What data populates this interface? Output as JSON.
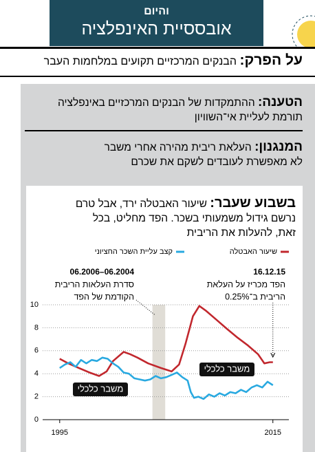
{
  "banner": {
    "kicker": "והיום",
    "title": "אובססיית האינפלציה"
  },
  "headline": {
    "label": "על הפרק:",
    "text": "הבנקים המרכזיים תקועים במלחמות העבר"
  },
  "claim": {
    "label": "הטענה:",
    "lines": [
      "ההתמקדות של הבנקים המרכזיים באינפלציה",
      "תורמת לעליית אי־השוויון"
    ]
  },
  "mechanism": {
    "label": "המנגנון:",
    "lines": [
      "העלאת ריבית מהירה אחרי משבר",
      "לא מאפשרת לעובדים לשקם את שכרם"
    ]
  },
  "last_week": {
    "label": "בשבוע שעבר:",
    "lines": [
      "שיעור האבטלה ירד, אבל טרם",
      "נרשם גידול משמעותי בשכר. הפד מחליט, בכל",
      "זאת, להעלות את הריבית"
    ]
  },
  "chart_data": {
    "type": "line",
    "series": [
      {
        "name": "שיעור האבטלה",
        "color": "#c1272d",
        "x": [
          1995.0,
          1995.8,
          1996.8,
          1997.8,
          1998.7,
          1999.4,
          2000.0,
          2001.0,
          2001.6,
          2002.3,
          2003.3,
          2004.5,
          2005.5,
          2006.2,
          2006.8,
          2007.5,
          2008.1,
          2008.7,
          2009.7,
          2010.7,
          2011.6,
          2012.6,
          2013.6,
          2014.2,
          2014.7,
          2015.0
        ],
        "values": [
          5.3,
          4.9,
          4.5,
          4.1,
          3.8,
          4.2,
          5.1,
          5.9,
          5.7,
          5.4,
          4.9,
          4.5,
          4.2,
          4.8,
          6.6,
          9.0,
          9.9,
          9.5,
          8.7,
          7.9,
          7.2,
          6.5,
          5.7,
          4.9,
          5.0,
          5.0
        ]
      },
      {
        "name": "קצב עליית השכר החציוני",
        "color": "#29a9e0",
        "x": [
          1995.0,
          1995.5,
          1996.0,
          1996.5,
          1997.0,
          1997.5,
          1998.0,
          1998.5,
          1999.0,
          1999.5,
          2000.0,
          2000.5,
          2001.0,
          2001.5,
          2002.0,
          2002.5,
          2003.0,
          2003.5,
          2004.0,
          2004.5,
          2005.0,
          2005.5,
          2006.0,
          2006.5,
          2007.0,
          2007.3,
          2007.6,
          2008.0,
          2008.5,
          2009.0,
          2009.5,
          2010.0,
          2010.5,
          2011.0,
          2011.5,
          2012.0,
          2012.5,
          2013.0,
          2013.5,
          2014.0,
          2014.5,
          2015.0
        ],
        "values": [
          4.5,
          4.8,
          5.0,
          4.6,
          5.2,
          4.9,
          5.2,
          5.1,
          5.4,
          5.3,
          4.9,
          4.6,
          4.1,
          4.0,
          3.6,
          3.5,
          3.4,
          3.5,
          3.8,
          3.6,
          3.7,
          3.9,
          4.1,
          3.7,
          3.4,
          2.4,
          1.9,
          2.0,
          1.8,
          2.2,
          2.0,
          2.3,
          2.1,
          2.4,
          2.3,
          2.6,
          2.4,
          2.8,
          3.0,
          2.8,
          3.3,
          3.0
        ]
      }
    ],
    "xlim": [
      1993.4,
      2016.5
    ],
    "xticks": [
      1995,
      2015
    ],
    "ylim": [
      0,
      10
    ],
    "yticks": [
      0,
      2,
      4,
      6,
      8,
      10
    ],
    "grid": true,
    "annotations": [
      {
        "title": "06.2004–06.2006",
        "lines": [
          "סדרת העלאות הריבית",
          "הקודמת של הפד"
        ],
        "x_range": [
          2003.7,
          2004.9
        ]
      },
      {
        "title": "16.12.15",
        "lines": [
          "הפד מכריז על העלאת",
          "הריבית ב־0.25%"
        ],
        "x": 2015.0
      }
    ],
    "crisis_labels": [
      "משבר כלכלי",
      "משבר כלכלי"
    ]
  }
}
